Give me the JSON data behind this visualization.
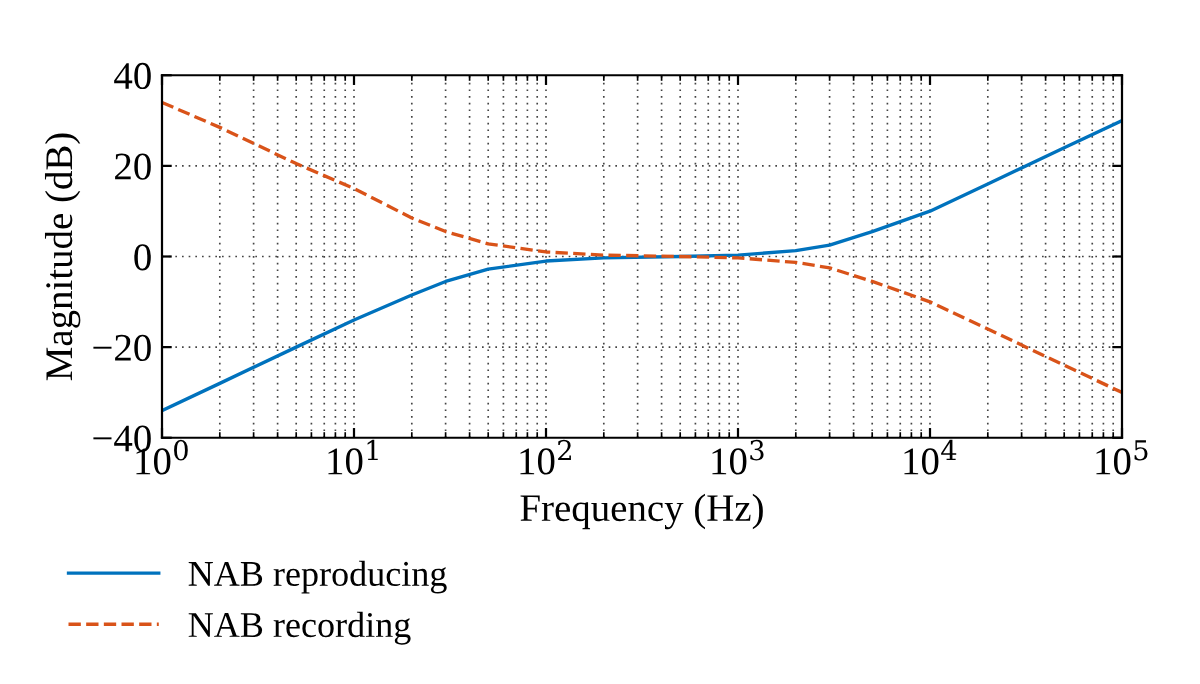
{
  "chart_data": {
    "type": "line",
    "xlabel": "Frequency (Hz)",
    "ylabel": "Magnitude (dB)",
    "log": "x",
    "grid": true,
    "legend": "bottom left",
    "xlim": [
      1,
      100000
    ],
    "ylim": [
      -40,
      40
    ],
    "xticks": [
      {
        "value": 1,
        "label": "10$^{0}$"
      },
      {
        "value": 10,
        "label": "10$^{1}$"
      },
      {
        "value": 100,
        "label": "10$^{2}$"
      },
      {
        "value": 1000,
        "label": "10$^{3}$"
      },
      {
        "value": 10000,
        "label": "10$^{4}$"
      },
      {
        "value": 100000,
        "label": "10$^{5}$"
      }
    ],
    "yticks": [
      {
        "value": -40,
        "label": "−40"
      },
      {
        "value": -20,
        "label": "−20"
      },
      0,
      20,
      40
    ],
    "x": [
      1,
      2,
      5,
      10,
      20,
      30,
      50,
      100,
      200,
      500,
      1000,
      2000,
      3000,
      5000,
      10000,
      20000,
      50000,
      100000
    ],
    "series": [
      {
        "name": "NAB reproducing",
        "color": "#0072bd",
        "line_style": "solid",
        "values": [
          -34,
          -28,
          -20,
          -14,
          -8.5,
          -5.5,
          -2.8,
          -1,
          -0.3,
          0,
          0.3,
          1.3,
          2.5,
          5.5,
          10,
          16,
          24,
          30
        ]
      },
      {
        "name": "NAB recording",
        "color": "#d95319",
        "line_style": "dashed",
        "values": [
          34,
          28.5,
          20.5,
          15,
          8.5,
          5.5,
          2.8,
          1,
          0.3,
          0,
          -0.3,
          -1.3,
          -2.5,
          -5.5,
          -10,
          -16,
          -24,
          -30
        ]
      }
    ]
  }
}
